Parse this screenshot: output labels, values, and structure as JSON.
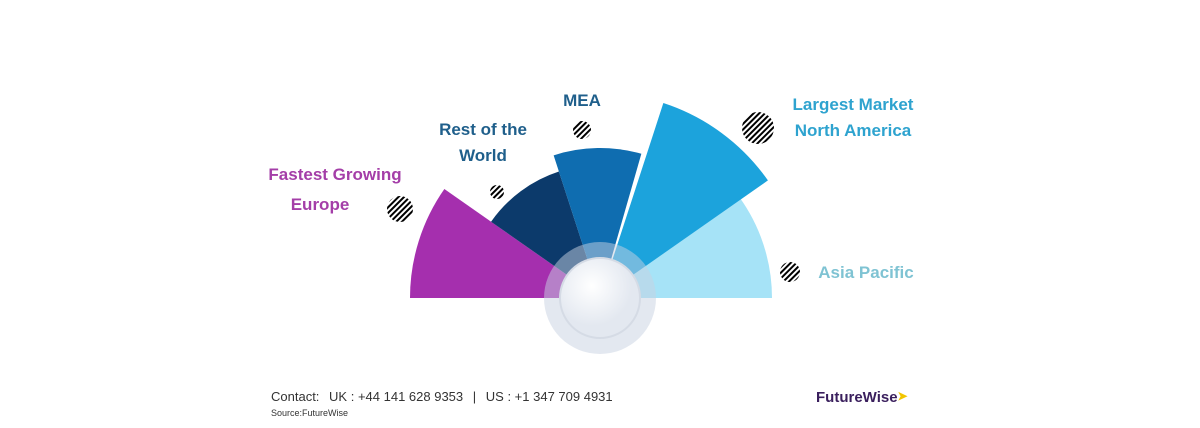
{
  "segments": [
    {
      "id": "europe",
      "label": "Fastest Growing Europe",
      "line1": "Fastest Growing",
      "line2": "Europe",
      "color": "#a52fae",
      "text_color": "#a43ea8"
    },
    {
      "id": "rest-of-world",
      "label": "Rest of the World",
      "line1": "Rest of the",
      "line2": "World",
      "color": "#0c3a6b",
      "text_color": "#1f5f8b"
    },
    {
      "id": "mea",
      "label": "MEA",
      "line1": "MEA",
      "line2": "",
      "color": "#0f6db0",
      "text_color": "#1f5f8b"
    },
    {
      "id": "north-america",
      "label": "Largest Market North America",
      "line1": "Largest Market",
      "line2": "North America",
      "color": "#1ca3dc",
      "text_color": "#2ea3cf"
    },
    {
      "id": "asia-pacific",
      "label": "Asia Pacific",
      "line1": "Asia Pacific",
      "line2": "",
      "color": "#a6e3f7",
      "text_color": "#7fc3d3"
    }
  ],
  "footer": {
    "contact_label": "Contact:",
    "uk": "UK : +44 141 628 9353",
    "sep": "|",
    "us": "US :  +1 347 709 4931",
    "source": "Source:FutureWise",
    "logo": "FutureWise"
  }
}
